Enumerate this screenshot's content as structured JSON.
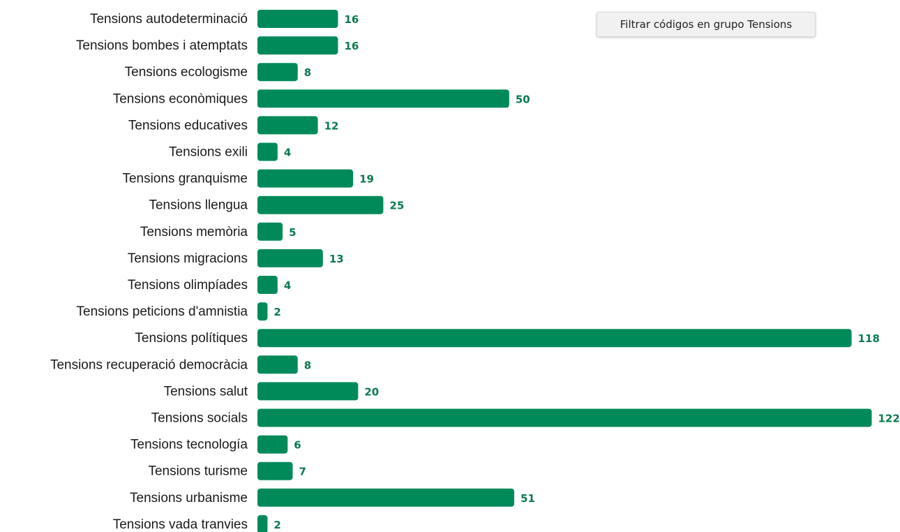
{
  "filter_button": {
    "label": "Filtrar códigos en grupo Tensions"
  },
  "colors": {
    "bar": "#008a5a",
    "value_label": "#0a7a4e",
    "category_label": "#1a1a1a"
  },
  "chart_data": {
    "type": "bar",
    "orientation": "horizontal",
    "title": "",
    "xlabel": "",
    "ylabel": "",
    "grid": false,
    "xlim": [
      0,
      122
    ],
    "categories": [
      "Tensions autodeterminació",
      "Tensions bombes i atemptats",
      "Tensions ecologisme",
      "Tensions econòmiques",
      "Tensions educatives",
      "Tensions exili",
      "Tensions granquisme",
      "Tensions llengua",
      "Tensions memòria",
      "Tensions migracions",
      "Tensions olimpíades",
      "Tensions peticions d'amnistia",
      "Tensions polítiques",
      "Tensions recuperació democràcia",
      "Tensions salut",
      "Tensions socials",
      "Tensions tecnología",
      "Tensions turisme",
      "Tensions urbanisme",
      "Tensions vada tranvies"
    ],
    "values": [
      16,
      16,
      8,
      50,
      12,
      4,
      19,
      25,
      5,
      13,
      4,
      2,
      118,
      8,
      20,
      122,
      6,
      7,
      51,
      2
    ]
  }
}
